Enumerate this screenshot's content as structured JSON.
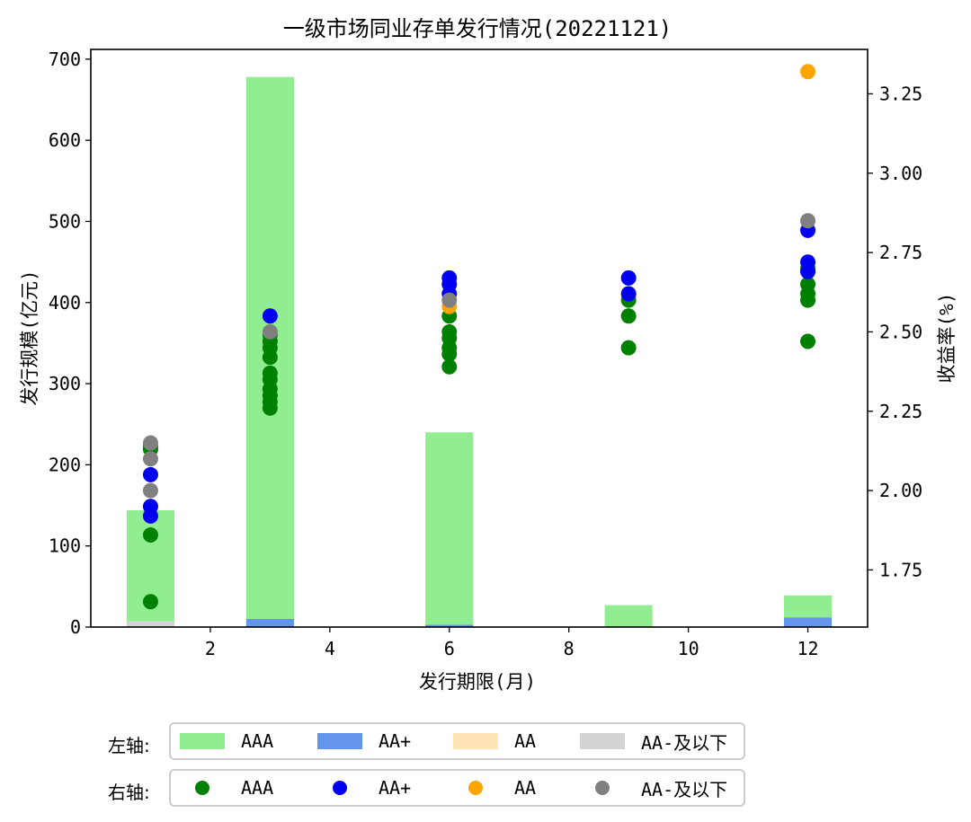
{
  "chart_data": {
    "type": "bar",
    "title": "一级市场同业存单发行情况(20221121)",
    "xlabel": "发行期限(月)",
    "ylabel_left": "发行规模(亿元)",
    "ylabel_right": "收益率(%)",
    "xlim": [
      0,
      13.0
    ],
    "x_ticks": [
      2,
      4,
      6,
      8,
      10,
      12
    ],
    "ylim_left": [
      0,
      712
    ],
    "y_ticks_left": [
      0,
      100,
      200,
      300,
      400,
      500,
      600,
      700
    ],
    "ylim_right": [
      1.57,
      3.39
    ],
    "y_ticks_right": [
      1.75,
      2.0,
      2.25,
      2.5,
      2.75,
      3.0,
      3.25
    ],
    "y_tick_labels_right": [
      "1.75",
      "2.00",
      "2.25",
      "2.50",
      "2.75",
      "3.00",
      "3.25"
    ],
    "categories": [
      1,
      3,
      6,
      9,
      12
    ],
    "bar_series": [
      {
        "name": "AAA",
        "color": "#90ee90",
        "values": [
          137,
          668,
          237,
          27,
          27
        ]
      },
      {
        "name": "AA+",
        "color": "#6495ed",
        "values": [
          0,
          10,
          3,
          0,
          12
        ]
      },
      {
        "name": "AA",
        "color": "#ffe4b5",
        "values": [
          0,
          0,
          0,
          0,
          0
        ]
      },
      {
        "name": "AA-及以下",
        "color": "#d3d3d3",
        "values": [
          7,
          0,
          0,
          0,
          0
        ]
      }
    ],
    "scatter_series": [
      {
        "name": "AAA",
        "color": "#008000",
        "points": [
          [
            1,
            1.65
          ],
          [
            1,
            1.86
          ],
          [
            1,
            2.13
          ],
          [
            1,
            2.14
          ],
          [
            3,
            2.26
          ],
          [
            3,
            2.28
          ],
          [
            3,
            2.3
          ],
          [
            3,
            2.32
          ],
          [
            3,
            2.35
          ],
          [
            3,
            2.37
          ],
          [
            3,
            2.42
          ],
          [
            3,
            2.45
          ],
          [
            3,
            2.47
          ],
          [
            3,
            2.49
          ],
          [
            6,
            2.39
          ],
          [
            6,
            2.43
          ],
          [
            6,
            2.45
          ],
          [
            6,
            2.48
          ],
          [
            6,
            2.5
          ],
          [
            6,
            2.55
          ],
          [
            9,
            2.45
          ],
          [
            9,
            2.55
          ],
          [
            9,
            2.6
          ],
          [
            12,
            2.47
          ],
          [
            12,
            2.6
          ],
          [
            12,
            2.62
          ],
          [
            12,
            2.65
          ],
          [
            12,
            2.7
          ]
        ]
      },
      {
        "name": "AA+",
        "color": "#0000ee",
        "points": [
          [
            1,
            1.92
          ],
          [
            1,
            1.95
          ],
          [
            1,
            2.05
          ],
          [
            3,
            2.55
          ],
          [
            6,
            2.62
          ],
          [
            6,
            2.65
          ],
          [
            6,
            2.67
          ],
          [
            9,
            2.62
          ],
          [
            9,
            2.67
          ],
          [
            12,
            2.69
          ],
          [
            12,
            2.72
          ],
          [
            12,
            2.82
          ]
        ]
      },
      {
        "name": "AA",
        "color": "#ffa500",
        "points": [
          [
            6,
            2.58
          ],
          [
            12,
            3.32
          ]
        ]
      },
      {
        "name": "AA-及以下",
        "color": "#808080",
        "points": [
          [
            1,
            2.0
          ],
          [
            1,
            2.1
          ],
          [
            1,
            2.15
          ],
          [
            3,
            2.5
          ],
          [
            6,
            2.6
          ],
          [
            12,
            2.85
          ]
        ]
      }
    ]
  },
  "legend_left": {
    "title": "左轴:",
    "items": [
      {
        "label": "AAA",
        "color": "#90ee90"
      },
      {
        "label": "AA+",
        "color": "#6495ed"
      },
      {
        "label": "AA",
        "color": "#ffe4b5"
      },
      {
        "label": "AA-及以下",
        "color": "#d3d3d3"
      }
    ]
  },
  "legend_right": {
    "title": "右轴:",
    "items": [
      {
        "label": "AAA",
        "color": "#008000"
      },
      {
        "label": "AA+",
        "color": "#0000ee"
      },
      {
        "label": "AA",
        "color": "#ffa500"
      },
      {
        "label": "AA-及以下",
        "color": "#808080"
      }
    ]
  }
}
